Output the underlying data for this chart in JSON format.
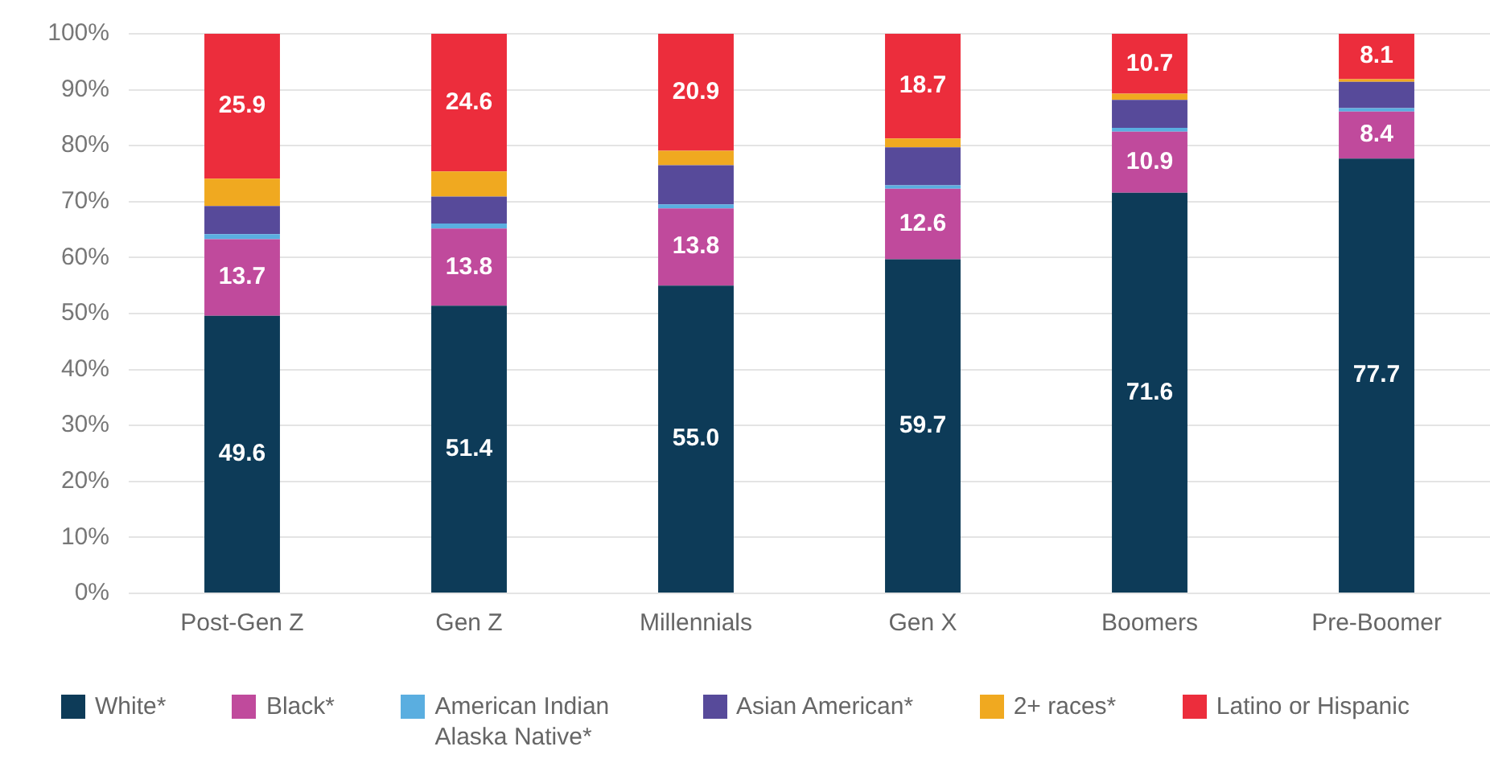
{
  "chart_data": {
    "type": "bar",
    "stacked": true,
    "categories": [
      "Post-Gen Z",
      "Gen Z",
      "Millennials",
      "Gen X",
      "Boomers",
      "Pre-Boomer"
    ],
    "series": [
      {
        "name": "White*",
        "color": "#0d3b58",
        "values": [
          49.6,
          51.4,
          55.0,
          59.7,
          71.6,
          77.7
        ],
        "value_labels": [
          "49.6",
          "51.4",
          "55.0",
          "59.7",
          "71.6",
          "77.7"
        ]
      },
      {
        "name": "Black*",
        "color": "#c04a9c",
        "values": [
          13.7,
          13.8,
          13.8,
          12.6,
          10.9,
          8.4
        ],
        "value_labels": [
          "13.7",
          "13.8",
          "13.8",
          "12.6",
          "10.9",
          "8.4"
        ]
      },
      {
        "name": "American Indian Alaska Native*",
        "color": "#5aaee0",
        "values": [
          0.9,
          0.9,
          0.7,
          0.6,
          0.7,
          0.6
        ]
      },
      {
        "name": "Asian American*",
        "color": "#574a9a",
        "values": [
          5.0,
          4.8,
          7.0,
          6.8,
          5.0,
          4.7
        ]
      },
      {
        "name": "2+ races*",
        "color": "#f0a920",
        "values": [
          4.9,
          4.5,
          2.6,
          1.6,
          1.1,
          0.5
        ]
      },
      {
        "name": "Latino or Hispanic",
        "color": "#ec2d3c",
        "values": [
          25.9,
          24.6,
          20.9,
          18.7,
          10.7,
          8.1
        ],
        "value_labels": [
          "25.9",
          "24.6",
          "20.9",
          "18.7",
          "10.7",
          "8.1"
        ]
      }
    ],
    "ylim": [
      0,
      100
    ],
    "yticks": [
      {
        "value": 0,
        "label": "0%"
      },
      {
        "value": 10,
        "label": "10%"
      },
      {
        "value": 20,
        "label": "20%"
      },
      {
        "value": 30,
        "label": "30%"
      },
      {
        "value": 40,
        "label": "40%"
      },
      {
        "value": 50,
        "label": "50%"
      },
      {
        "value": 60,
        "label": "60%"
      },
      {
        "value": 70,
        "label": "70%"
      },
      {
        "value": 80,
        "label": "80%"
      },
      {
        "value": 90,
        "label": "90%"
      },
      {
        "value": 100,
        "label": "100%"
      }
    ],
    "grid": "y",
    "legend": "bottom"
  }
}
